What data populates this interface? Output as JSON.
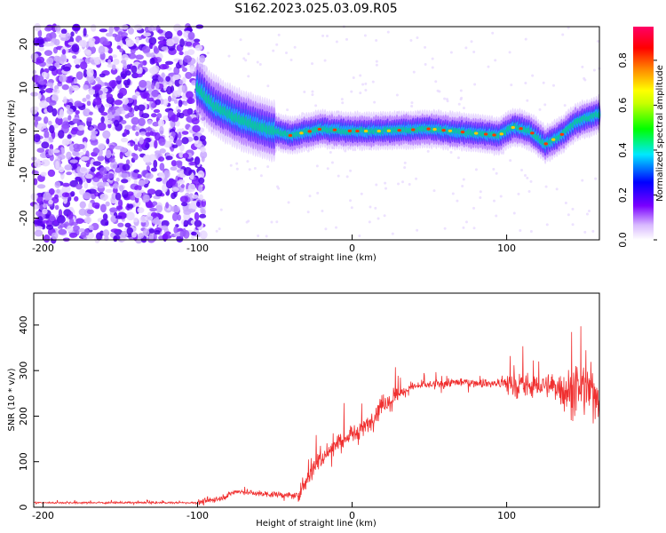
{
  "title": "S162.2023.025.03.09.R05",
  "chart_data": [
    {
      "type": "heatmap",
      "xlabel": "Height of straight line (km)",
      "ylabel": "Frequency (Hz)",
      "xlim": [
        -206,
        160
      ],
      "ylim": [
        -25,
        24
      ],
      "xticks": [
        -200,
        -100,
        0,
        100
      ],
      "yticks": [
        -20,
        -10,
        0,
        10,
        20
      ],
      "colorbar": {
        "label": "Normalized spectral amplitude",
        "range": [
          0,
          0.95
        ],
        "ticks": [
          "0.0",
          "0.2",
          "0.4",
          "0.6",
          "0.8"
        ],
        "colormap": "rainbow (white-violet-blue-cyan-green-yellow-red-pink)"
      },
      "ridge": [
        {
          "x": -100,
          "y": 10
        },
        {
          "x": -90,
          "y": 6
        },
        {
          "x": -75,
          "y": 3
        },
        {
          "x": -60,
          "y": 1
        },
        {
          "x": -40,
          "y": -1
        },
        {
          "x": -20,
          "y": 0.5
        },
        {
          "x": 0,
          "y": 0
        },
        {
          "x": 20,
          "y": 0
        },
        {
          "x": 50,
          "y": 0.5
        },
        {
          "x": 80,
          "y": -0.5
        },
        {
          "x": 95,
          "y": -1
        },
        {
          "x": 105,
          "y": 1
        },
        {
          "x": 115,
          "y": 0
        },
        {
          "x": 125,
          "y": -3
        },
        {
          "x": 135,
          "y": -1
        },
        {
          "x": 145,
          "y": 2
        },
        {
          "x": 160,
          "y": 4
        }
      ],
      "grid": false
    },
    {
      "type": "line",
      "xlabel": "Height of straight line (km)",
      "ylabel": "SNR (10 * v/v)",
      "xlim": [
        -206,
        160
      ],
      "ylim": [
        0,
        470
      ],
      "xticks": [
        -200,
        -100,
        0,
        100
      ],
      "yticks": [
        0,
        100,
        200,
        300,
        400
      ],
      "series_color": "#f03030",
      "trend": [
        {
          "x": -206,
          "y": 10
        },
        {
          "x": -100,
          "y": 10
        },
        {
          "x": -85,
          "y": 20
        },
        {
          "x": -75,
          "y": 35
        },
        {
          "x": -60,
          "y": 30
        },
        {
          "x": -35,
          "y": 25
        },
        {
          "x": -25,
          "y": 90
        },
        {
          "x": -10,
          "y": 140
        },
        {
          "x": 10,
          "y": 180
        },
        {
          "x": 20,
          "y": 230
        },
        {
          "x": 40,
          "y": 265
        },
        {
          "x": 70,
          "y": 275
        },
        {
          "x": 100,
          "y": 270
        },
        {
          "x": 130,
          "y": 265
        },
        {
          "x": 160,
          "y": 250
        }
      ],
      "grid": false
    }
  ]
}
